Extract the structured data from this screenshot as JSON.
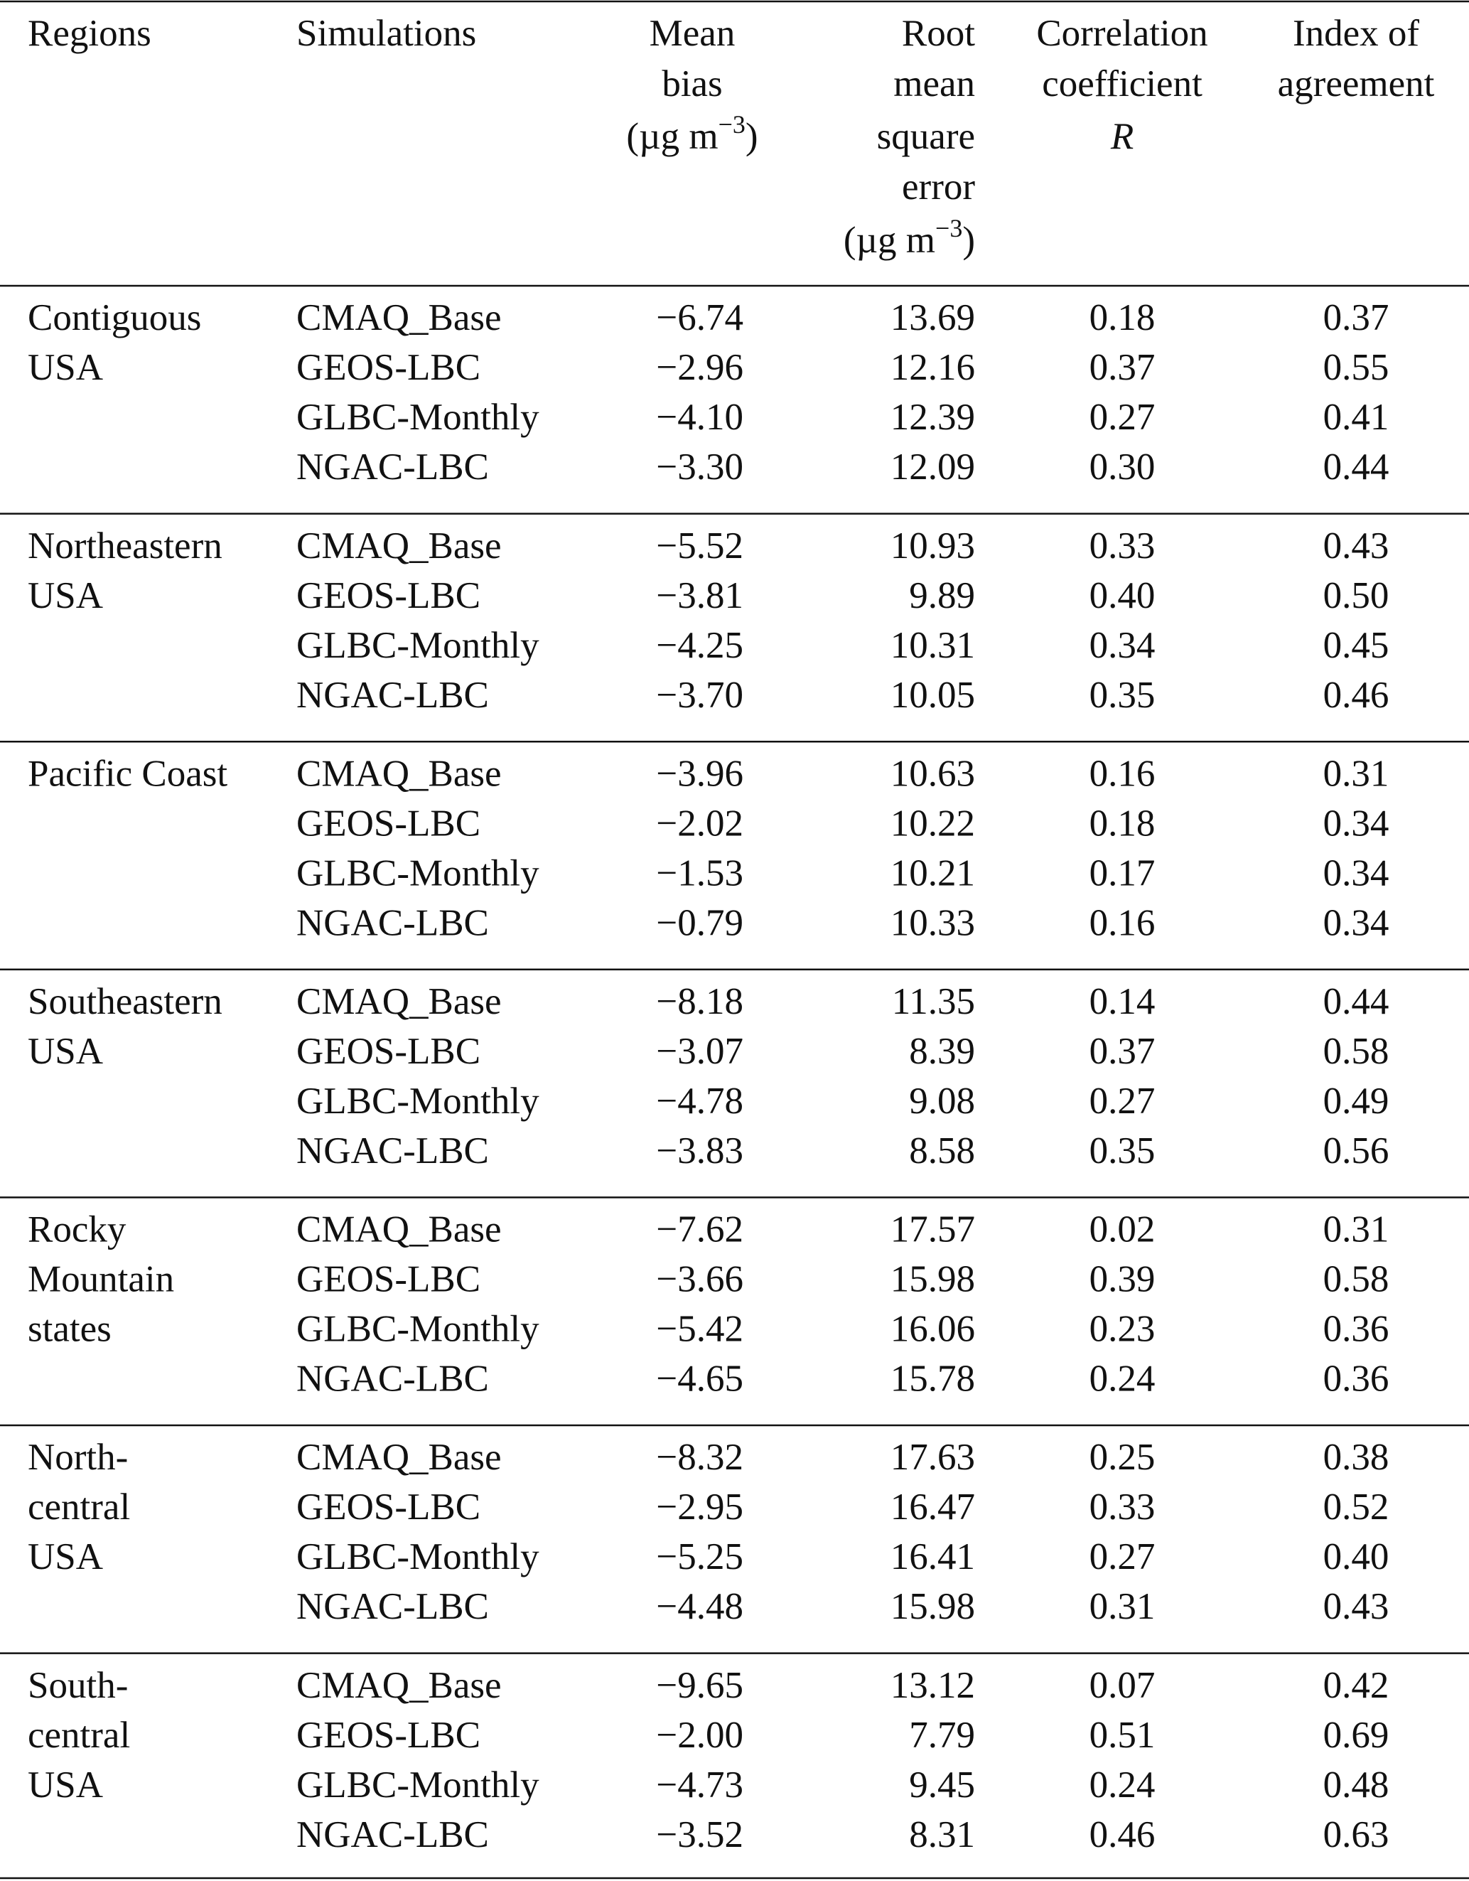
{
  "table": {
    "header": [
      {
        "lines": [
          "Regions"
        ]
      },
      {
        "lines": [
          "Simulations"
        ]
      },
      {
        "lines": [
          "Mean",
          "bias"
        ],
        "unit": {
          "base": "(µg m",
          "sup": "−3",
          "close": ")"
        }
      },
      {
        "lines": [
          "Root",
          "mean",
          "square",
          "error"
        ],
        "unit": {
          "base": "(µg m",
          "sup": "−3",
          "close": ")"
        }
      },
      {
        "lines": [
          "Correlation",
          "coefficient",
          "R"
        ]
      },
      {
        "lines": [
          "Index of",
          "agreement"
        ]
      }
    ],
    "groups": [
      {
        "region": [
          "Contiguous",
          "USA"
        ],
        "rows": [
          [
            "CMAQ_Base",
            "−6.74",
            "13.69",
            "0.18",
            "0.37"
          ],
          [
            "GEOS-LBC",
            "−2.96",
            "12.16",
            "0.37",
            "0.55"
          ],
          [
            "GLBC-Monthly",
            "−4.10",
            "12.39",
            "0.27",
            "0.41"
          ],
          [
            "NGAC-LBC",
            "−3.30",
            "12.09",
            "0.30",
            "0.44"
          ]
        ]
      },
      {
        "region": [
          "Northeastern",
          "USA"
        ],
        "rows": [
          [
            "CMAQ_Base",
            "−5.52",
            "10.93",
            "0.33",
            "0.43"
          ],
          [
            "GEOS-LBC",
            "−3.81",
            "9.89",
            "0.40",
            "0.50"
          ],
          [
            "GLBC-Monthly",
            "−4.25",
            "10.31",
            "0.34",
            "0.45"
          ],
          [
            "NGAC-LBC",
            "−3.70",
            "10.05",
            "0.35",
            "0.46"
          ]
        ]
      },
      {
        "region": [
          "Pacific Coast"
        ],
        "rows": [
          [
            "CMAQ_Base",
            "−3.96",
            "10.63",
            "0.16",
            "0.31"
          ],
          [
            "GEOS-LBC",
            "−2.02",
            "10.22",
            "0.18",
            "0.34"
          ],
          [
            "GLBC-Monthly",
            "−1.53",
            "10.21",
            "0.17",
            "0.34"
          ],
          [
            "NGAC-LBC",
            "−0.79",
            "10.33",
            "0.16",
            "0.34"
          ]
        ]
      },
      {
        "region": [
          "Southeastern",
          "USA"
        ],
        "rows": [
          [
            "CMAQ_Base",
            "−8.18",
            "11.35",
            "0.14",
            "0.44"
          ],
          [
            "GEOS-LBC",
            "−3.07",
            "8.39",
            "0.37",
            "0.58"
          ],
          [
            "GLBC-Monthly",
            "−4.78",
            "9.08",
            "0.27",
            "0.49"
          ],
          [
            "NGAC-LBC",
            "−3.83",
            "8.58",
            "0.35",
            "0.56"
          ]
        ]
      },
      {
        "region": [
          "Rocky",
          "Mountain",
          "states"
        ],
        "rows": [
          [
            "CMAQ_Base",
            "−7.62",
            "17.57",
            "0.02",
            "0.31"
          ],
          [
            "GEOS-LBC",
            "−3.66",
            "15.98",
            "0.39",
            "0.58"
          ],
          [
            "GLBC-Monthly",
            "−5.42",
            "16.06",
            "0.23",
            "0.36"
          ],
          [
            "NGAC-LBC",
            "−4.65",
            "15.78",
            "0.24",
            "0.36"
          ]
        ]
      },
      {
        "region": [
          "North-",
          "central",
          "USA"
        ],
        "rows": [
          [
            "CMAQ_Base",
            "−8.32",
            "17.63",
            "0.25",
            "0.38"
          ],
          [
            "GEOS-LBC",
            "−2.95",
            "16.47",
            "0.33",
            "0.52"
          ],
          [
            "GLBC-Monthly",
            "−5.25",
            "16.41",
            "0.27",
            "0.40"
          ],
          [
            "NGAC-LBC",
            "−4.48",
            "15.98",
            "0.31",
            "0.43"
          ]
        ]
      },
      {
        "region": [
          "South-",
          "central",
          "USA"
        ],
        "rows": [
          [
            "CMAQ_Base",
            "−9.65",
            "13.12",
            "0.07",
            "0.42"
          ],
          [
            "GEOS-LBC",
            "−2.00",
            "7.79",
            "0.51",
            "0.69"
          ],
          [
            "GLBC-Monthly",
            "−4.73",
            "9.45",
            "0.24",
            "0.48"
          ],
          [
            "NGAC-LBC",
            "−3.52",
            "8.31",
            "0.46",
            "0.63"
          ]
        ]
      }
    ]
  }
}
